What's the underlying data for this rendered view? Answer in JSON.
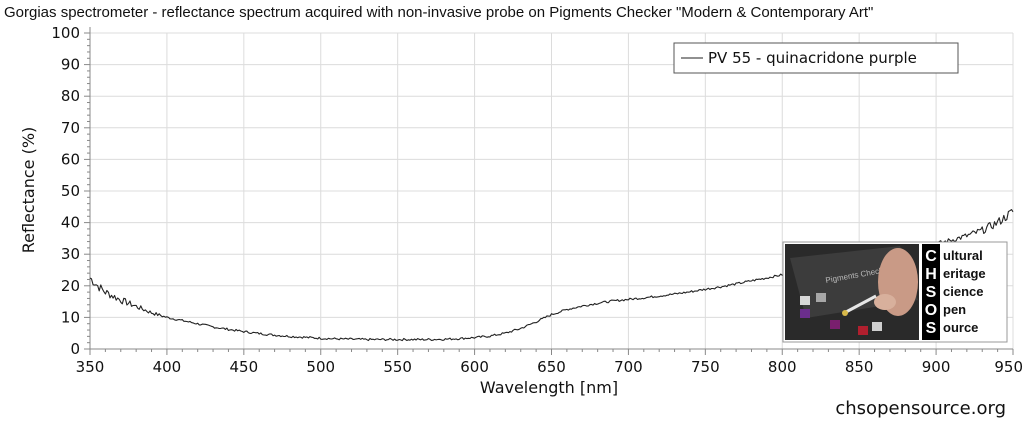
{
  "chart_data": {
    "type": "line",
    "title": "Gorgias spectrometer - reflectance spectrum acquired with non-invasive probe on Pigments Checker \"Modern & Contemporary Art\"",
    "xlabel": "Wavelength [nm]",
    "ylabel": "Reflectance (%)",
    "xlim": [
      350,
      950
    ],
    "ylim": [
      0,
      100
    ],
    "x_ticks": [
      350,
      400,
      450,
      500,
      550,
      600,
      650,
      700,
      750,
      800,
      850,
      900,
      950
    ],
    "y_ticks": [
      0,
      10,
      20,
      30,
      40,
      50,
      60,
      70,
      80,
      90,
      100
    ],
    "grid": true,
    "legend_position": "top-right",
    "line_color": "#222222",
    "series": [
      {
        "name": "PV 55 - quinacridone purple",
        "x": [
          350,
          355,
          360,
          370,
          380,
          390,
          400,
          410,
          420,
          430,
          440,
          450,
          460,
          470,
          480,
          490,
          500,
          510,
          520,
          530,
          540,
          550,
          560,
          570,
          580,
          590,
          600,
          610,
          620,
          630,
          640,
          650,
          660,
          670,
          680,
          690,
          700,
          710,
          720,
          730,
          740,
          750,
          760,
          770,
          780,
          790,
          800,
          810,
          820,
          830,
          840,
          850,
          860,
          870,
          880,
          890,
          900,
          910,
          920,
          930,
          940,
          950
        ],
        "y": [
          22.5,
          20,
          18,
          15.5,
          13.5,
          11.5,
          10,
          9,
          8,
          7,
          6.2,
          5.5,
          4.9,
          4.4,
          4,
          3.7,
          3.4,
          3.2,
          3.1,
          3,
          3,
          3,
          3,
          3,
          3.1,
          3.3,
          3.6,
          4.1,
          5,
          6.5,
          8.6,
          10.9,
          12.5,
          13.6,
          14.5,
          15.2,
          15.7,
          16.2,
          16.8,
          17.4,
          18.1,
          18.9,
          19.7,
          20.6,
          21.6,
          22.5,
          23.5,
          24.5,
          25.4,
          26.3,
          27.1,
          28,
          29,
          30,
          31,
          32,
          33.3,
          34.5,
          35.8,
          37.5,
          40,
          43.5
        ]
      }
    ]
  },
  "watermark": "chsopensource.org",
  "logo": {
    "letters": [
      "C",
      "H",
      "S",
      "O",
      "S"
    ],
    "words": [
      "ultural",
      "eritage",
      "cience",
      "pen",
      "ource"
    ]
  },
  "colors": {
    "grid": "#dcdcdc",
    "axis": "#888888",
    "background": "#ffffff"
  }
}
